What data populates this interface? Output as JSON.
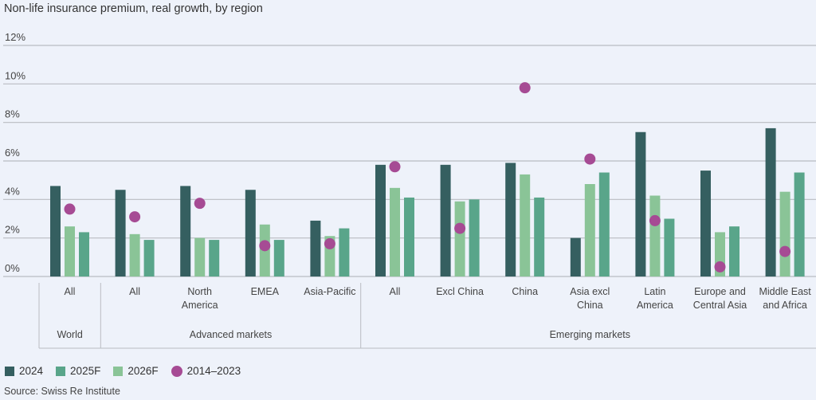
{
  "chart_data": {
    "type": "bar",
    "title": "Non-life insurance premium, real growth, by region",
    "xlabel": "",
    "ylabel": "",
    "ylim": [
      0,
      12
    ],
    "yticks": [
      0,
      2,
      4,
      6,
      8,
      10,
      12
    ],
    "ytick_labels": [
      "0%",
      "2%",
      "4%",
      "6%",
      "8%",
      "10%",
      "12%"
    ],
    "grid": true,
    "legend_position": "bottom-left",
    "categories": [
      [
        "All"
      ],
      [
        "All"
      ],
      [
        "North",
        "America"
      ],
      [
        "EMEA"
      ],
      [
        "Asia-Pacific"
      ],
      [
        "All"
      ],
      [
        "Excl China"
      ],
      [
        "China"
      ],
      [
        "Asia excl",
        "China"
      ],
      [
        "Latin",
        "America"
      ],
      [
        "Europe and",
        "Central Asia"
      ],
      [
        "Middle East",
        "and Africa"
      ]
    ],
    "groups": [
      {
        "label": "World",
        "start": 0,
        "end": 0
      },
      {
        "label": "Advanced markets",
        "start": 1,
        "end": 4
      },
      {
        "label": "Emerging markets",
        "start": 5,
        "end": 11
      }
    ],
    "series": [
      {
        "name": "2024",
        "kind": "bar",
        "color": "#355f60",
        "values": [
          4.7,
          4.5,
          4.7,
          4.5,
          2.9,
          5.8,
          5.8,
          5.9,
          2.0,
          7.5,
          5.5,
          7.7
        ]
      },
      {
        "name": "2026F",
        "kind": "bar",
        "color": "#8ac497",
        "values": [
          2.6,
          2.2,
          2.0,
          2.7,
          2.1,
          4.6,
          3.9,
          5.3,
          4.8,
          4.2,
          2.3,
          4.4
        ]
      },
      {
        "name": "2025F",
        "kind": "bar",
        "color": "#59a58a",
        "values": [
          2.3,
          1.9,
          1.9,
          1.9,
          2.5,
          4.1,
          4.0,
          4.1,
          5.4,
          3.0,
          2.6,
          5.4
        ]
      },
      {
        "name": "2014–2023",
        "kind": "dot",
        "color": "#a64b94",
        "values": [
          3.5,
          3.1,
          3.8,
          1.6,
          1.7,
          5.7,
          2.5,
          9.8,
          6.1,
          2.9,
          0.5,
          1.3
        ]
      }
    ],
    "legend": [
      {
        "name": "2024",
        "kind": "square",
        "color": "#355f60"
      },
      {
        "name": "2025F",
        "kind": "square",
        "color": "#59a58a"
      },
      {
        "name": "2026F",
        "kind": "square",
        "color": "#8ac497"
      },
      {
        "name": "2014–2023",
        "kind": "dot",
        "color": "#a64b94"
      }
    ],
    "source": "Source: Swiss Re Institute"
  }
}
